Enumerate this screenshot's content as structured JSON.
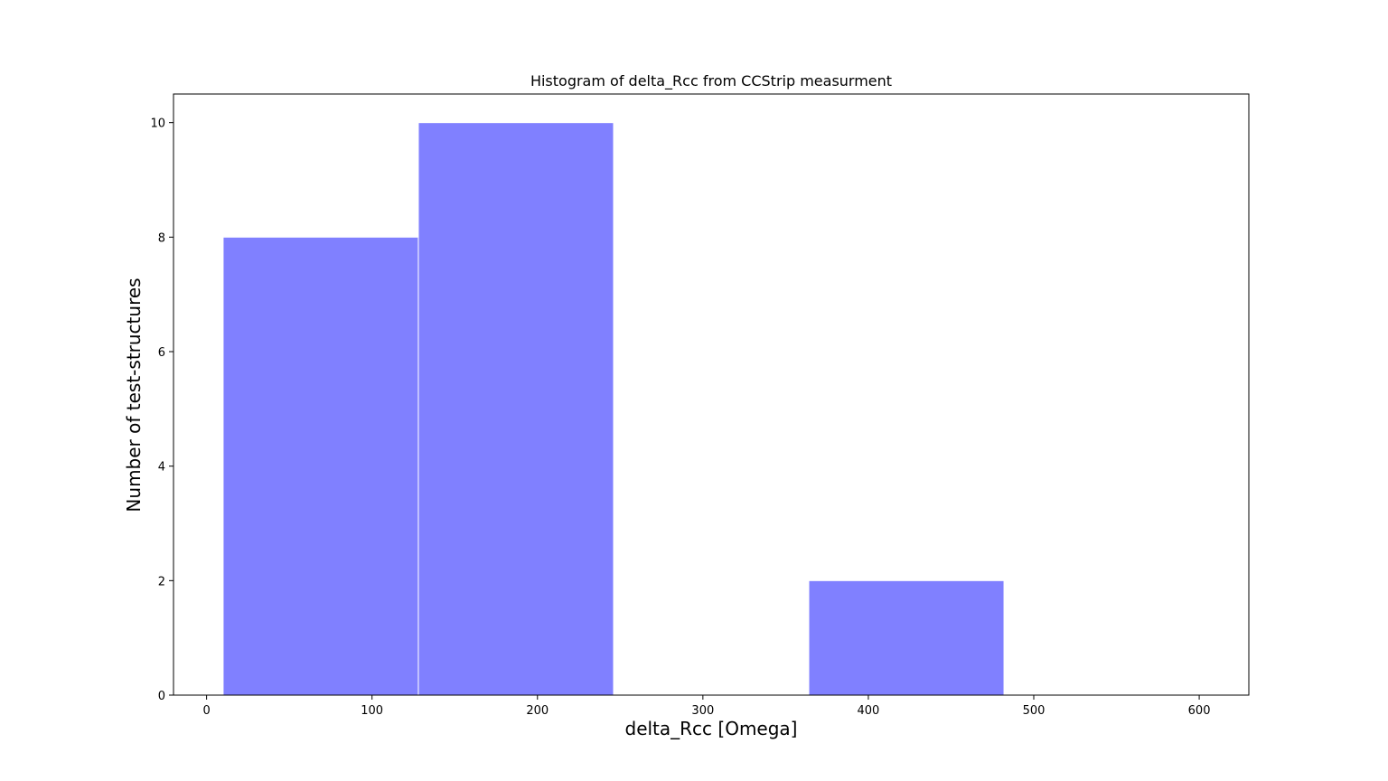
{
  "chart_data": {
    "type": "bar",
    "title": "Histogram of delta_Rcc from CCStrip measurment",
    "xlabel": "delta_Rcc [Omega]",
    "ylabel": "Number of test-structures",
    "xlim": [
      -20,
      630
    ],
    "ylim": [
      0,
      10.5
    ],
    "x_ticks": [
      0,
      100,
      200,
      300,
      400,
      500,
      600
    ],
    "y_ticks": [
      0,
      2,
      4,
      6,
      8,
      10
    ],
    "bins": [
      {
        "start": 10,
        "end": 128,
        "count": 8
      },
      {
        "start": 128,
        "end": 246,
        "count": 10
      },
      {
        "start": 246,
        "end": 364,
        "count": 0
      },
      {
        "start": 364,
        "end": 482,
        "count": 2
      }
    ],
    "bar_color": "#8080ff",
    "edge_color": "#ffffff",
    "grid": false,
    "legend": false
  }
}
